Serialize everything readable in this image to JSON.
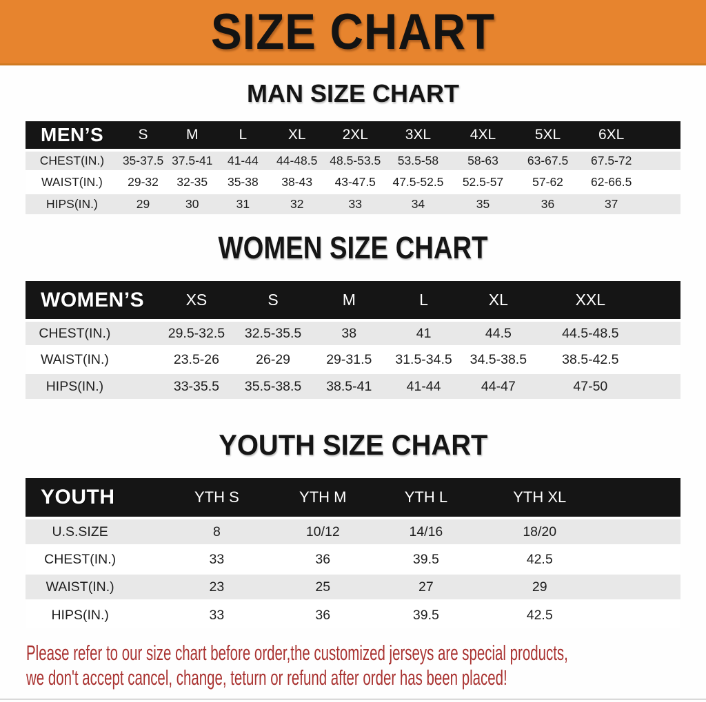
{
  "banner": {
    "title": "SIZE CHART"
  },
  "sections": [
    {
      "heading": "MAN SIZE CHART",
      "header": {
        "label": "MEN’S",
        "sizes": [
          "S",
          "M",
          "L",
          "XL",
          "2XL",
          "3XL",
          "4XL",
          "5XL",
          "6XL"
        ]
      },
      "rows": [
        {
          "label": "CHEST(IN.)",
          "values": [
            "35-37.5",
            "37.5-41",
            "41-44",
            "44-48.5",
            "48.5-53.5",
            "53.5-58",
            "58-63",
            "63-67.5",
            "67.5-72"
          ]
        },
        {
          "label": "WAIST(IN.)",
          "values": [
            "29-32",
            "32-35",
            "35-38",
            "38-43",
            "43-47.5",
            "47.5-52.5",
            "52.5-57",
            "57-62",
            "62-66.5"
          ]
        },
        {
          "label": "HIPS(IN.)",
          "values": [
            "29",
            "30",
            "31",
            "32",
            "33",
            "34",
            "35",
            "36",
            "37"
          ]
        }
      ]
    },
    {
      "heading": "WOMEN SIZE CHART",
      "header": {
        "label": "WOMEN’S",
        "sizes": [
          "XS",
          "S",
          "M",
          "L",
          "XL",
          "XXL"
        ]
      },
      "rows": [
        {
          "label": "CHEST(IN.)",
          "values": [
            "29.5-32.5",
            "32.5-35.5",
            "38",
            "41",
            "44.5",
            "44.5-48.5"
          ]
        },
        {
          "label": "WAIST(IN.)",
          "values": [
            "23.5-26",
            "26-29",
            "29-31.5",
            "31.5-34.5",
            "34.5-38.5",
            "38.5-42.5"
          ]
        },
        {
          "label": "HIPS(IN.)",
          "values": [
            "33-35.5",
            "35.5-38.5",
            "38.5-41",
            "41-44",
            "44-47",
            "47-50"
          ]
        }
      ]
    },
    {
      "heading": "YOUTH SIZE CHART",
      "header": {
        "label": "YOUTH",
        "sizes": [
          "YTH S",
          "YTH M",
          "YTH L",
          "YTH XL"
        ]
      },
      "rows": [
        {
          "label": "U.S.SIZE",
          "values": [
            "8",
            "10/12",
            "14/16",
            "18/20"
          ]
        },
        {
          "label": "CHEST(IN.)",
          "values": [
            "33",
            "36",
            "39.5",
            "42.5"
          ]
        },
        {
          "label": "WAIST(IN.)",
          "values": [
            "23",
            "25",
            "27",
            "29"
          ]
        },
        {
          "label": "HIPS(IN.)",
          "values": [
            "33",
            "36",
            "39.5",
            "42.5"
          ]
        }
      ]
    }
  ],
  "footer": {
    "line1": "Please refer to our size chart before order,the customized jerseys are special products,",
    "line2": "we don't accept cancel, change, teturn or refund after order has been placed!"
  },
  "colors": {
    "banner_orange": "#e7842e",
    "header_black": "#151515",
    "row_gray": "#e8e8e8",
    "footer_red": "#a93230"
  }
}
